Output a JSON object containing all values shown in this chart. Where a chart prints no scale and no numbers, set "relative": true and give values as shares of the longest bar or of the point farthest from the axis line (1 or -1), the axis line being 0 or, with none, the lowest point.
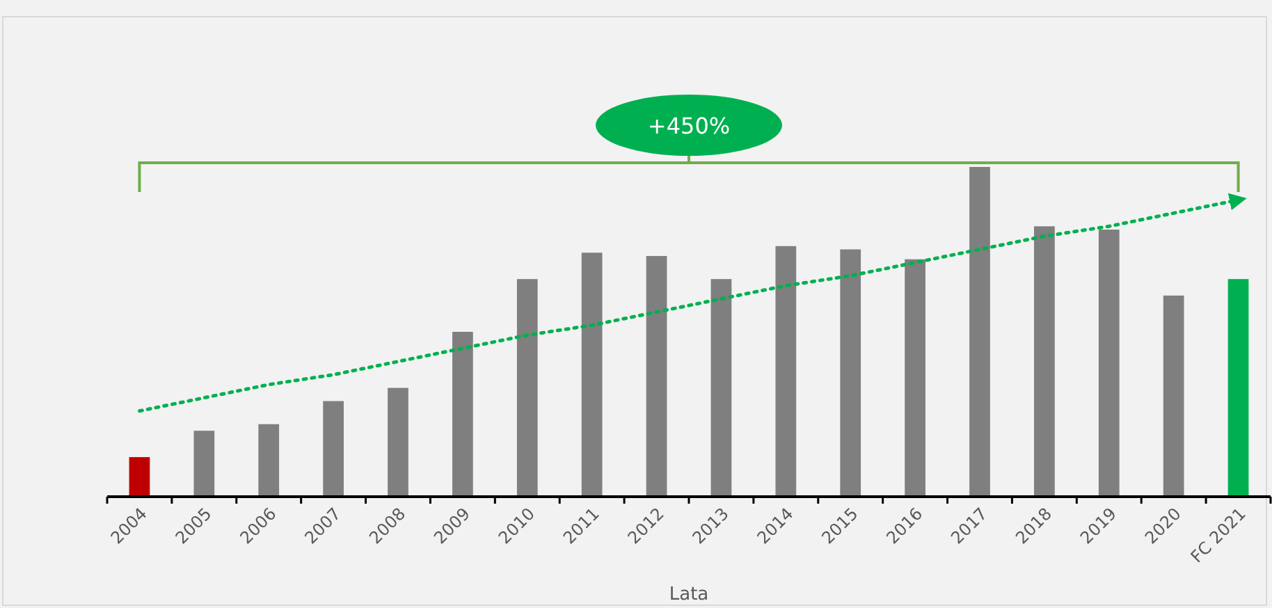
{
  "chart_data": {
    "type": "bar",
    "relative": true,
    "xlabel": "Lata",
    "categories": [
      "2004",
      "2005",
      "2006",
      "2007",
      "2008",
      "2009",
      "2010",
      "2011",
      "2012",
      "2013",
      "2014",
      "2015",
      "2016",
      "2017",
      "2018",
      "2019",
      "2020",
      "FC 2021"
    ],
    "series": [
      {
        "values": [
          0.12,
          0.2,
          0.22,
          0.29,
          0.33,
          0.5,
          0.66,
          0.74,
          0.73,
          0.66,
          0.76,
          0.75,
          0.72,
          1,
          0.82,
          0.81,
          0.61,
          0.66
        ],
        "colors": [
          "#c00000",
          "#7f7f7f",
          "#7f7f7f",
          "#7f7f7f",
          "#7f7f7f",
          "#7f7f7f",
          "#7f7f7f",
          "#7f7f7f",
          "#7f7f7f",
          "#7f7f7f",
          "#7f7f7f",
          "#7f7f7f",
          "#7f7f7f",
          "#7f7f7f",
          "#7f7f7f",
          "#7f7f7f",
          "#7f7f7f",
          "#00b050"
        ]
      },
      {
        "type": "line",
        "values": [
          0.26,
          0.3,
          0.34,
          0.37,
          0.41,
          0.45,
          0.49,
          0.52,
          0.56,
          0.6,
          0.64,
          0.67,
          0.71,
          0.75,
          0.79,
          0.82,
          0.86,
          0.9
        ],
        "color": "#00b050",
        "line_style": "dotted"
      }
    ],
    "annotations": [
      "+450%"
    ],
    "marker": "none"
  }
}
